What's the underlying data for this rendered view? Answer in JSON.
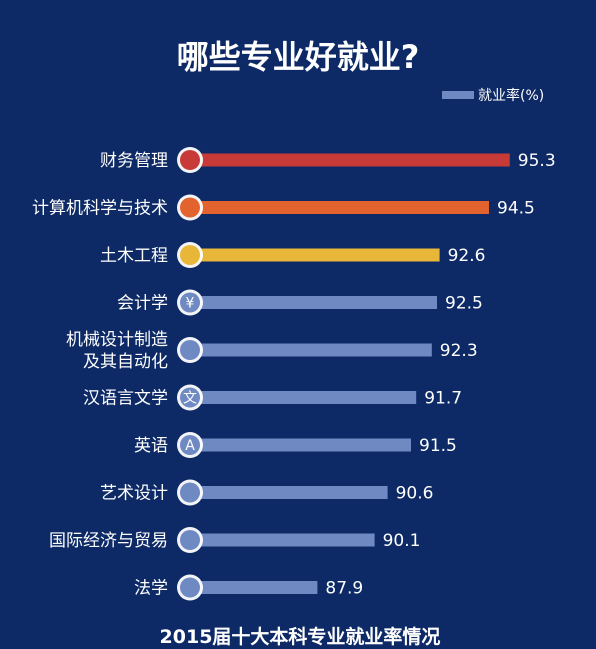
{
  "title": "哪些专业好就业?",
  "footer": "2015届十大本科专业就业率情况",
  "colors": {
    "background": "#0d2a66",
    "bar_default": "#6f89c2",
    "bar_highlights": [
      "#c73a38",
      "#e3632e",
      "#e8b73a"
    ]
  },
  "chart_data": {
    "type": "bar",
    "orientation": "horizontal",
    "title": "哪些专业好就业?",
    "legend": {
      "label": "就业率(%)",
      "position": "top-right"
    },
    "categories": [
      "财务管理",
      "计算机科学与技术",
      "土木工程",
      "会计学",
      "机械设计制造及其自动化",
      "汉语言文学",
      "英语",
      "艺术设计",
      "国际经济与贸易",
      "法学"
    ],
    "category_lines": [
      [
        "财务管理"
      ],
      [
        "计算机科学与技术"
      ],
      [
        "土木工程"
      ],
      [
        "会计学"
      ],
      [
        "机械设计制造",
        "及其自动化"
      ],
      [
        "汉语言文学"
      ],
      [
        "英语"
      ],
      [
        "艺术设计"
      ],
      [
        "国际经济与贸易"
      ],
      [
        "法学"
      ]
    ],
    "values": [
      95.3,
      94.5,
      92.6,
      92.5,
      92.3,
      91.7,
      91.5,
      90.6,
      90.1,
      87.9
    ],
    "value_labels": [
      "95.3",
      "94.5",
      "92.6",
      "92.5",
      "92.3",
      "91.7",
      "91.5",
      "90.6",
      "90.1",
      "87.9"
    ],
    "icons": [
      "piggy-bank-icon",
      "monitor-icon",
      "pencil-icon",
      "yen-icon",
      "wrench-icon",
      "wen-character-icon",
      "letter-a-icon",
      "palette-icon",
      "airplane-icon",
      "scales-icon"
    ],
    "icon_glyphs": [
      "",
      "",
      "",
      "¥",
      "",
      "文",
      "A",
      "",
      "",
      ""
    ],
    "xlim": [
      83,
      96
    ],
    "grid": false
  }
}
